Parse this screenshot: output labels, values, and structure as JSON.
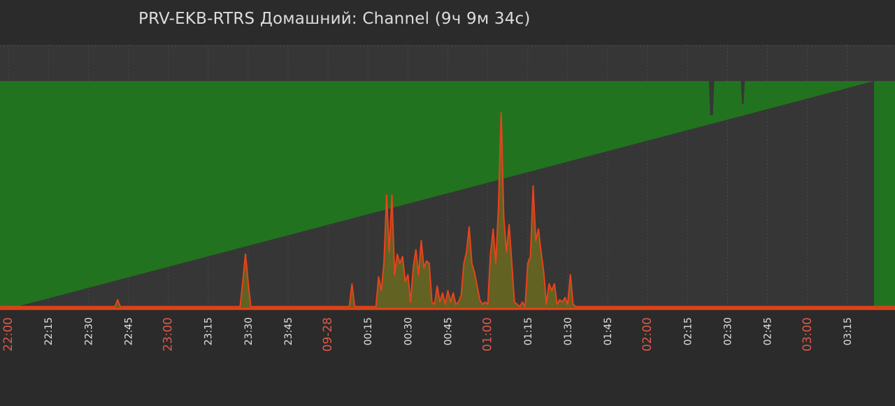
{
  "chart_data": {
    "type": "area",
    "title": "PRV-EKB-RTRS Домашний: Channel",
    "duration": "(9ч 9м 34с)",
    "xlabel": "",
    "ylabel": "",
    "x_ticks": [
      "22:00",
      "22:15",
      "22:30",
      "22:45",
      "23:00",
      "23:15",
      "23:30",
      "23:45",
      "09-28",
      "00:15",
      "00:30",
      "00:45",
      "01:00",
      "01:15",
      "01:30",
      "01:45",
      "02:00",
      "02:15",
      "02:30",
      "02:45",
      "03:00",
      "03:15"
    ],
    "major_ticks": [
      "22:00",
      "23:00",
      "09-28",
      "01:00",
      "02:00",
      "03:00"
    ],
    "x_range_minutes": [
      0,
      325
    ],
    "ylim": [
      0,
      100
    ],
    "grid": true,
    "colors": {
      "background": "#2b2b2b",
      "plot_background": "#363636",
      "grid": "#4a4a4a",
      "channel_fill": "#22731f",
      "load_line": "#e8431c",
      "load_fill": "#6a6a1f",
      "tick_normal": "#e0e0e0",
      "tick_major": "#e05a4a",
      "title": "#dcdcdc"
    },
    "series": [
      {
        "role": "channel_capacity",
        "points": [
          [
            0,
            100
          ],
          [
            263,
            100
          ],
          [
            263.5,
            85
          ],
          [
            264.5,
            85
          ],
          [
            265,
            100
          ],
          [
            275,
            100
          ],
          [
            275.4,
            90
          ],
          [
            276,
            90
          ],
          [
            276.5,
            100
          ],
          [
            325,
            100
          ]
        ]
      },
      {
        "role": "load",
        "points": [
          [
            0,
            1
          ],
          [
            40,
            1
          ],
          [
            41,
            4
          ],
          [
            42,
            1
          ],
          [
            87,
            1
          ],
          [
            88,
            12
          ],
          [
            89,
            24
          ],
          [
            90,
            12
          ],
          [
            91,
            1
          ],
          [
            128,
            1
          ],
          [
            129,
            11
          ],
          [
            130,
            1
          ],
          [
            138,
            1
          ],
          [
            139,
            14
          ],
          [
            140,
            8
          ],
          [
            141,
            20
          ],
          [
            142,
            50
          ],
          [
            143,
            25
          ],
          [
            144,
            50
          ],
          [
            145,
            15
          ],
          [
            146,
            24
          ],
          [
            147,
            20
          ],
          [
            148,
            23
          ],
          [
            149,
            12
          ],
          [
            150,
            15
          ],
          [
            151,
            3
          ],
          [
            152,
            18
          ],
          [
            153,
            26
          ],
          [
            154,
            15
          ],
          [
            155,
            30
          ],
          [
            156,
            18
          ],
          [
            157,
            21
          ],
          [
            158,
            20
          ],
          [
            159,
            3
          ],
          [
            160,
            2
          ],
          [
            161,
            10
          ],
          [
            162,
            3
          ],
          [
            163,
            7
          ],
          [
            164,
            2
          ],
          [
            165,
            8
          ],
          [
            166,
            3
          ],
          [
            167,
            7
          ],
          [
            168,
            2
          ],
          [
            169,
            3
          ],
          [
            170,
            6
          ],
          [
            171,
            20
          ],
          [
            172,
            25
          ],
          [
            173,
            36
          ],
          [
            174,
            20
          ],
          [
            175,
            16
          ],
          [
            176,
            10
          ],
          [
            177,
            4
          ],
          [
            178,
            2
          ],
          [
            179,
            3
          ],
          [
            180,
            2
          ],
          [
            181,
            24
          ],
          [
            182,
            35
          ],
          [
            183,
            20
          ],
          [
            184,
            45
          ],
          [
            185,
            86
          ],
          [
            186,
            40
          ],
          [
            187,
            25
          ],
          [
            188,
            37
          ],
          [
            189,
            20
          ],
          [
            190,
            3
          ],
          [
            191,
            2
          ],
          [
            192,
            1
          ],
          [
            193,
            3
          ],
          [
            194,
            1
          ],
          [
            195,
            20
          ],
          [
            196,
            23
          ],
          [
            197,
            54
          ],
          [
            198,
            30
          ],
          [
            199,
            35
          ],
          [
            200,
            25
          ],
          [
            201,
            16
          ],
          [
            202,
            2
          ],
          [
            203,
            11
          ],
          [
            204,
            8
          ],
          [
            205,
            11
          ],
          [
            206,
            2
          ],
          [
            207,
            4
          ],
          [
            208,
            3
          ],
          [
            209,
            5
          ],
          [
            210,
            2
          ],
          [
            211,
            15
          ],
          [
            212,
            2
          ],
          [
            213,
            1
          ],
          [
            325,
            1
          ]
        ]
      }
    ]
  }
}
